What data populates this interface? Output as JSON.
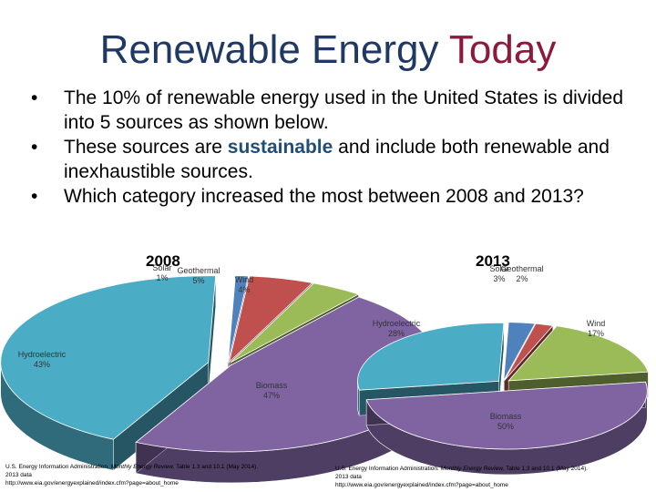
{
  "slide": {
    "title_main": "Renewable Energy",
    "title_accent": "Today",
    "bullet1": "The 10% of renewable energy used in the United States is divided into 5 sources as shown below.",
    "bullet2_pre": "These sources are",
    "bullet2_hl": "sustainable",
    "bullet2_post": "and include both renewable and inexhaustible sources.",
    "bullet3": "Which category increased the most between 2008 and 2013?",
    "bullet_symbol": "•"
  },
  "colors": {
    "title": "#1f3864",
    "accent": "#8b1a3c",
    "solar": "#4f81bd",
    "geothermal": "#c0504d",
    "wind": "#9bbb59",
    "biomass": "#8064a2",
    "hydro": "#4bacc6"
  },
  "chart_data": [
    {
      "type": "pie",
      "title": "2008",
      "categories": [
        "Solar",
        "Geothermal",
        "Wind",
        "Biomass",
        "Hydroelectric"
      ],
      "values": [
        1,
        5,
        4,
        47,
        43
      ],
      "labels": [
        "Solar 1%",
        "Geothermal 5%",
        "Wind 4%",
        "Biomass 47%",
        "Hydroelectric 43%"
      ],
      "source_prefix": "U.S. Energy Information Administration.",
      "source_italic": "Monthly Energy Review,",
      "source_rest": "Table 1.3 and 10.1 (May 2014). 2013 data",
      "source_url": "http://www.eia.gov/energyexplained/index.cfm?page=about_home"
    },
    {
      "type": "pie",
      "title": "2013",
      "categories": [
        "Solar",
        "Geothermal",
        "Wind",
        "Biomass",
        "Hydroelectric"
      ],
      "values": [
        3,
        2,
        17,
        50,
        28
      ],
      "labels": [
        "Solar 3%",
        "Geothermal 2%",
        "Wind 17%",
        "Biomass 50%",
        "Hydroelectric 28%"
      ],
      "source_prefix": "U.S. Energy Information Administration.",
      "source_italic": "Monthly Energy Review,",
      "source_rest": "Table 1.3 and 10.1 (May 2014). 2013 data",
      "source_url": "http://www.eia.gov/energyexplained/index.cfm?page=about_home"
    }
  ]
}
